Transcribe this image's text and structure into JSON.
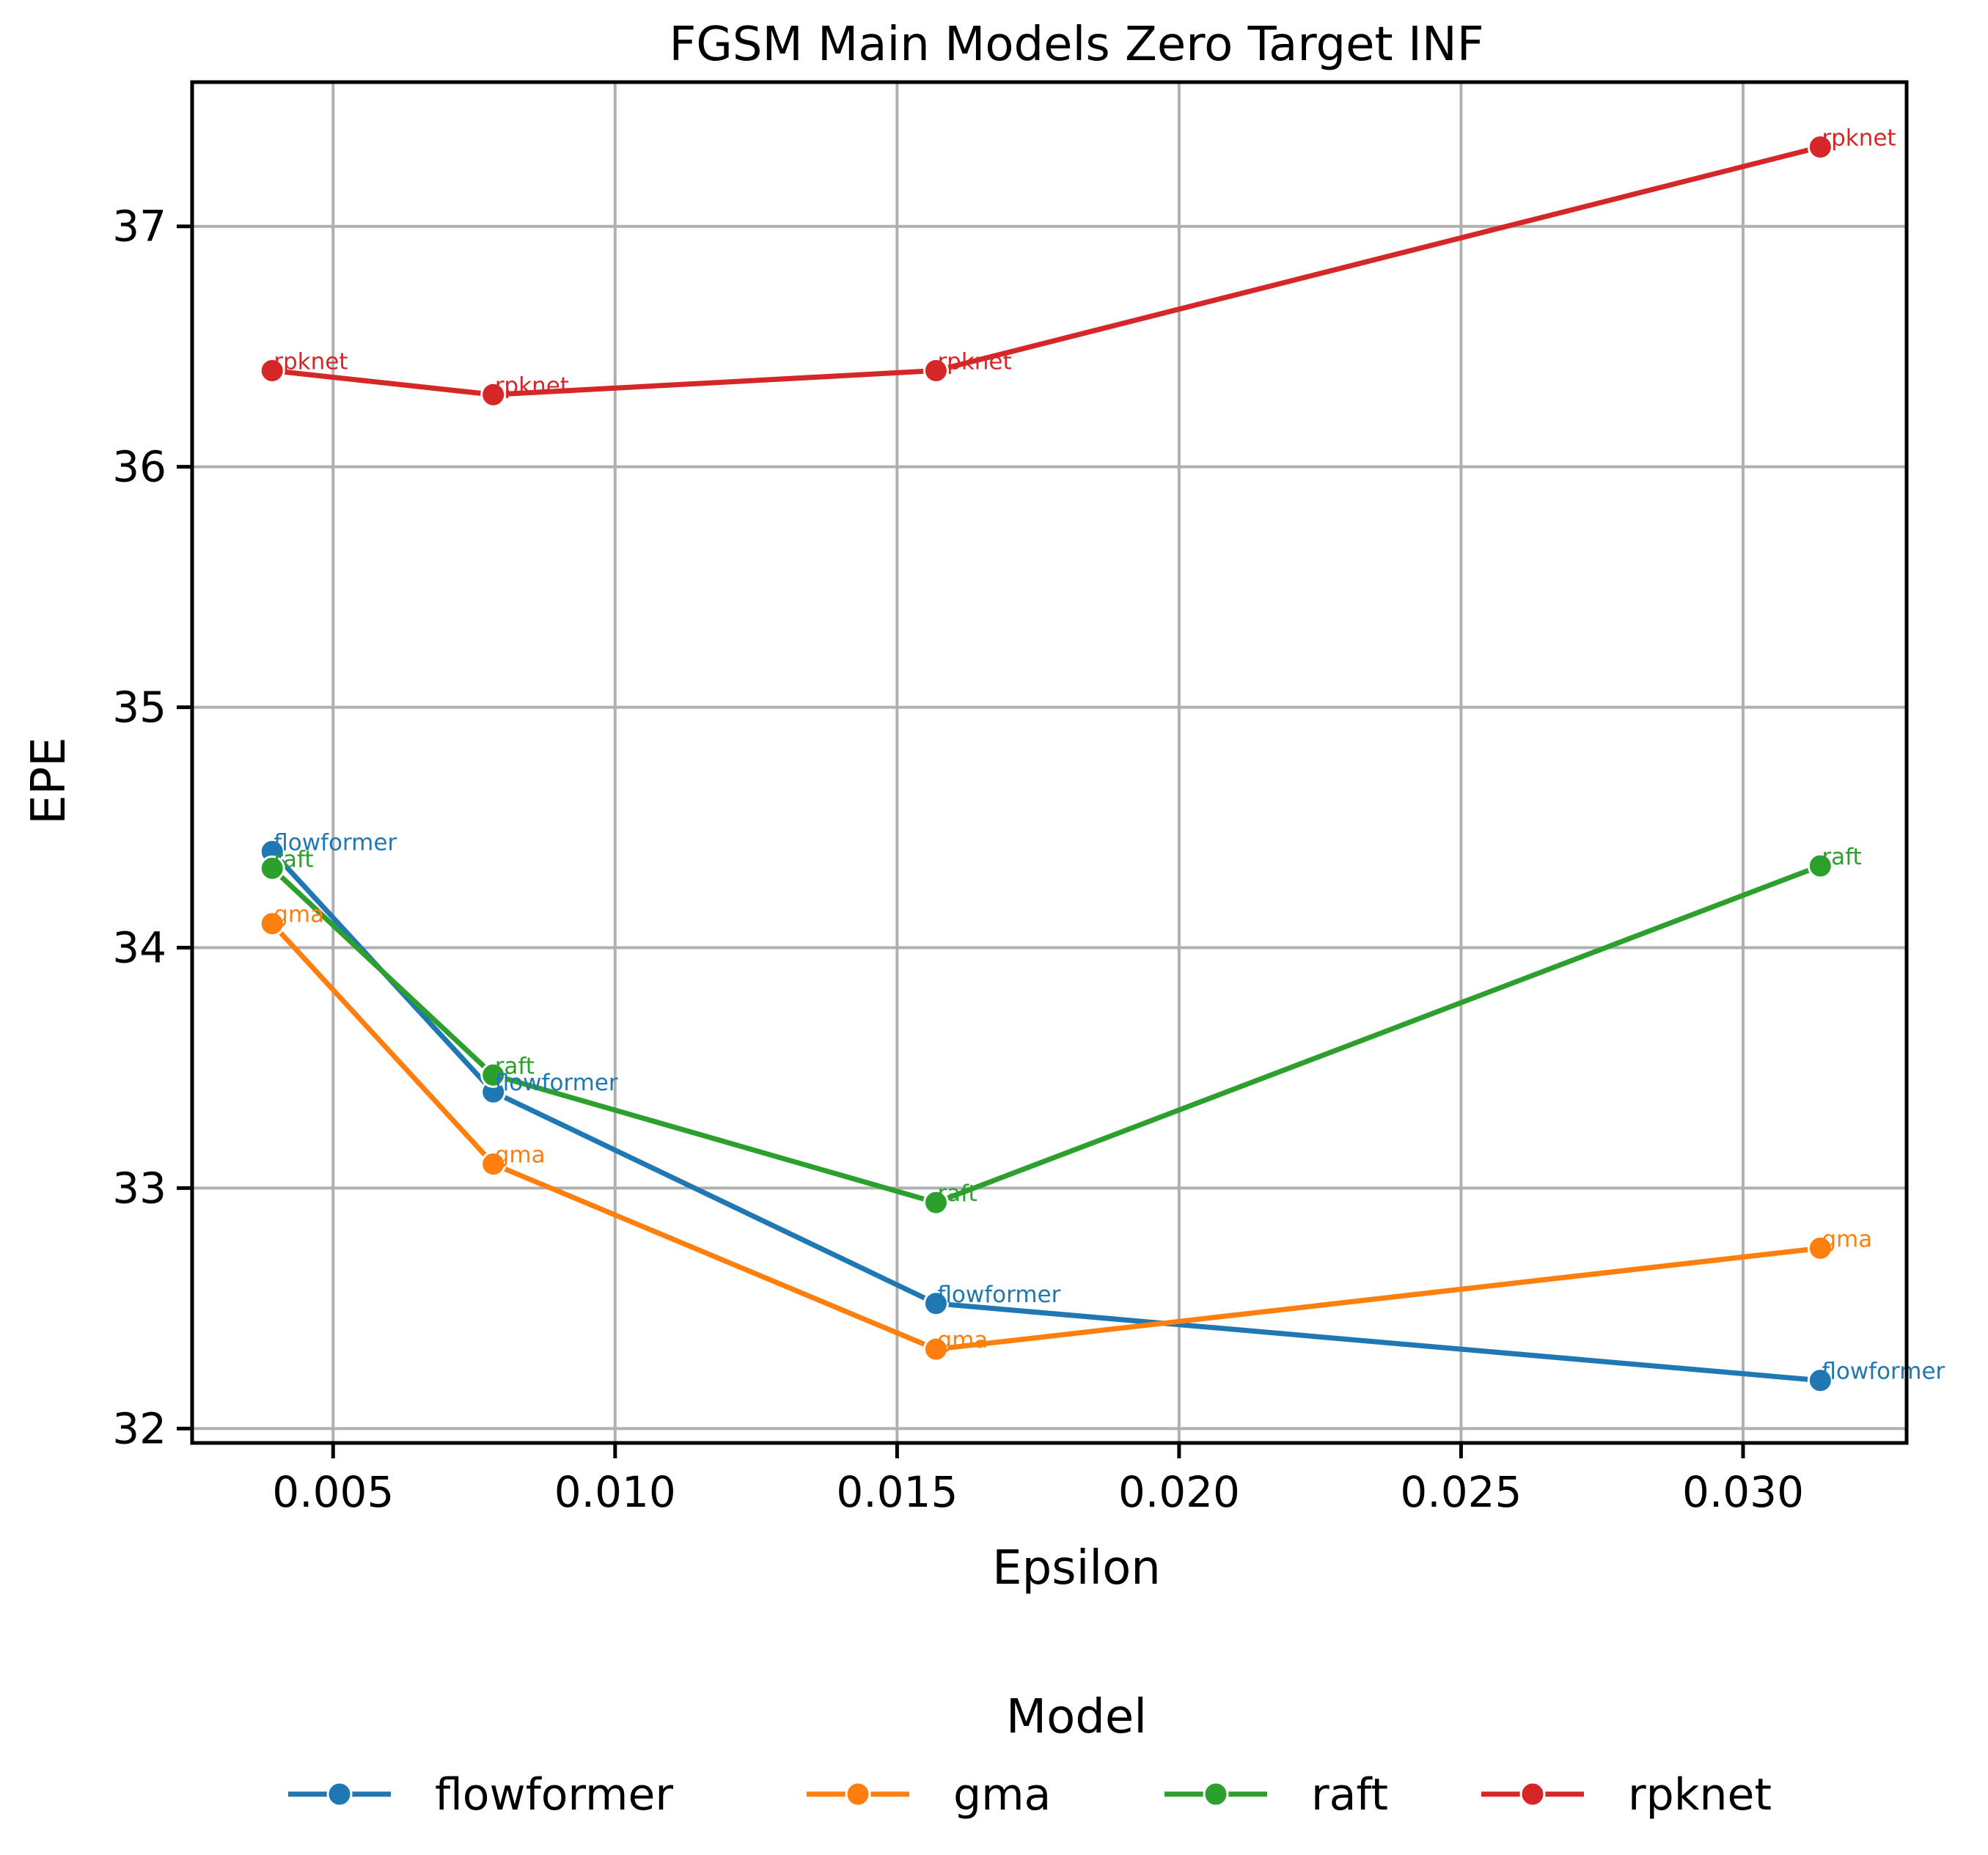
{
  "chart_data": {
    "type": "line",
    "title": "FGSM Main Models Zero Target INF",
    "xlabel": "Epsilon",
    "ylabel": "EPE",
    "xlim": [
      0.0025,
      0.0329
    ],
    "ylim": [
      31.94,
      37.6
    ],
    "xticks": [
      0.005,
      0.01,
      0.015,
      0.02,
      0.025,
      0.03
    ],
    "xtick_labels": [
      "0.005",
      "0.010",
      "0.015",
      "0.020",
      "0.025",
      "0.030"
    ],
    "yticks": [
      32,
      33,
      34,
      35,
      36,
      37
    ],
    "ytick_labels": [
      "32",
      "33",
      "34",
      "35",
      "36",
      "37"
    ],
    "grid": true,
    "legend": {
      "title": "Model",
      "placement": "bottom-center"
    },
    "x": [
      0.00392,
      0.00784,
      0.01569,
      0.03137
    ],
    "series": [
      {
        "name": "flowformer",
        "color": "#1f77b4",
        "values": [
          34.4,
          33.4,
          32.52,
          32.2
        ]
      },
      {
        "name": "gma",
        "color": "#ff7f0e",
        "values": [
          34.1,
          33.1,
          32.33,
          32.75
        ]
      },
      {
        "name": "raft",
        "color": "#2ca02c",
        "values": [
          34.33,
          33.47,
          32.94,
          34.34
        ]
      },
      {
        "name": "rpknet",
        "color": "#d62728",
        "values": [
          36.4,
          36.3,
          36.4,
          37.33
        ]
      }
    ]
  }
}
